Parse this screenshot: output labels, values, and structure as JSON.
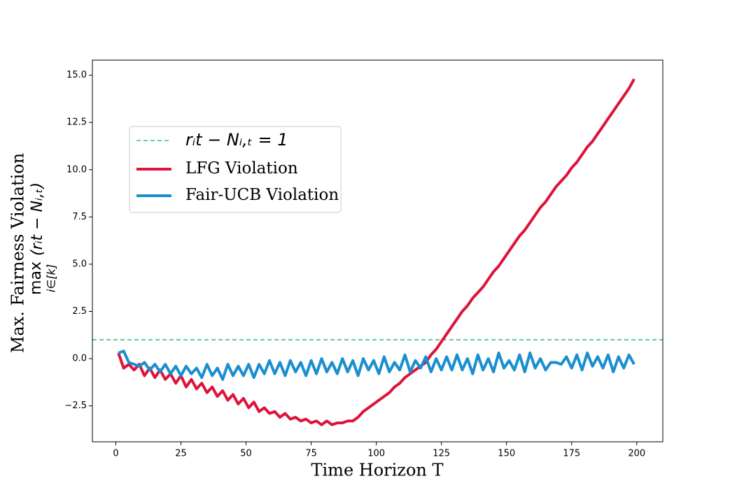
{
  "chart_data": {
    "type": "line",
    "x_label": "Time Horizon T",
    "y_label": "Max. Fairness Violation",
    "y_label_math": {
      "op": "max",
      "sub": "i∈[k]",
      "expr": "(rᵢt − Nᵢ,ₜ)"
    },
    "xlim": [
      -9,
      210
    ],
    "ylim": [
      -4.4,
      15.8
    ],
    "xticks": [
      0,
      25,
      50,
      75,
      100,
      125,
      150,
      175,
      200
    ],
    "yticks": [
      {
        "value": -2.5,
        "label": "−2.5"
      },
      {
        "value": 0,
        "label": "0.0"
      },
      {
        "value": 2.5,
        "label": "2.5"
      },
      {
        "value": 5,
        "label": "5.0"
      },
      {
        "value": 7.5,
        "label": "7.5"
      },
      {
        "value": 10,
        "label": "10.0"
      },
      {
        "value": 12.5,
        "label": "12.5"
      },
      {
        "value": 15,
        "label": "15.0"
      }
    ],
    "grid": false,
    "legend": "upper left",
    "reference_line": {
      "name": "rᵢt − Nᵢ,ₜ = 1",
      "value": 1,
      "color": "#3cc08a",
      "linestyle": "dashed"
    },
    "x": [
      1,
      3,
      5,
      7,
      9,
      11,
      13,
      15,
      17,
      19,
      21,
      23,
      25,
      27,
      29,
      31,
      33,
      35,
      37,
      39,
      41,
      43,
      45,
      47,
      49,
      51,
      53,
      55,
      57,
      59,
      61,
      63,
      65,
      67,
      69,
      71,
      73,
      75,
      77,
      79,
      81,
      83,
      85,
      87,
      89,
      91,
      93,
      95,
      97,
      99,
      101,
      103,
      105,
      107,
      109,
      111,
      113,
      115,
      117,
      119,
      121,
      123,
      125,
      127,
      129,
      131,
      133,
      135,
      137,
      139,
      141,
      143,
      145,
      147,
      149,
      151,
      153,
      155,
      157,
      159,
      161,
      163,
      165,
      167,
      169,
      171,
      173,
      175,
      177,
      179,
      181,
      183,
      185,
      187,
      189,
      191,
      193,
      195,
      197,
      199
    ],
    "series": [
      {
        "name": "LFG Violation",
        "color": "#dc143c",
        "values": [
          0.3,
          -0.5,
          -0.3,
          -0.6,
          -0.3,
          -0.9,
          -0.5,
          -1.0,
          -0.6,
          -1.1,
          -0.8,
          -1.3,
          -0.9,
          -1.5,
          -1.1,
          -1.6,
          -1.3,
          -1.8,
          -1.5,
          -2.0,
          -1.7,
          -2.2,
          -1.9,
          -2.4,
          -2.1,
          -2.6,
          -2.3,
          -2.8,
          -2.6,
          -2.9,
          -2.8,
          -3.1,
          -2.9,
          -3.2,
          -3.1,
          -3.3,
          -3.2,
          -3.4,
          -3.3,
          -3.5,
          -3.3,
          -3.5,
          -3.4,
          -3.4,
          -3.3,
          -3.3,
          -3.1,
          -2.8,
          -2.6,
          -2.4,
          -2.2,
          -2.0,
          -1.8,
          -1.5,
          -1.3,
          -1.0,
          -0.8,
          -0.6,
          -0.4,
          -0.2,
          0.2,
          0.5,
          0.9,
          1.3,
          1.7,
          2.1,
          2.5,
          2.8,
          3.2,
          3.5,
          3.8,
          4.2,
          4.6,
          4.9,
          5.3,
          5.7,
          6.1,
          6.5,
          6.8,
          7.2,
          7.6,
          8.0,
          8.3,
          8.7,
          9.1,
          9.4,
          9.7,
          10.1,
          10.4,
          10.8,
          11.2,
          11.5,
          11.9,
          12.3,
          12.7,
          13.1,
          13.5,
          13.9,
          14.3,
          14.8
        ]
      },
      {
        "name": "Fair-UCB Violation",
        "color": "#1a8fd0",
        "values": [
          0.3,
          0.4,
          -0.2,
          -0.3,
          -0.4,
          -0.2,
          -0.6,
          -0.3,
          -0.7,
          -0.3,
          -0.8,
          -0.4,
          -0.9,
          -0.4,
          -0.8,
          -0.5,
          -1.0,
          -0.3,
          -0.9,
          -0.5,
          -1.1,
          -0.3,
          -0.9,
          -0.4,
          -0.9,
          -0.3,
          -1.0,
          -0.3,
          -0.8,
          -0.1,
          -0.8,
          -0.2,
          -0.9,
          -0.1,
          -0.7,
          -0.2,
          -0.9,
          -0.1,
          -0.8,
          0.0,
          -0.7,
          -0.2,
          -0.8,
          0.0,
          -0.7,
          -0.1,
          -0.9,
          0.0,
          -0.6,
          -0.1,
          -0.8,
          0.1,
          -0.7,
          -0.2,
          -0.6,
          0.2,
          -0.7,
          -0.1,
          -0.5,
          0.1,
          -0.7,
          0.0,
          -0.6,
          0.1,
          -0.6,
          0.2,
          -0.6,
          0.0,
          -0.8,
          0.2,
          -0.6,
          0.0,
          -0.7,
          0.3,
          -0.5,
          -0.1,
          -0.6,
          0.2,
          -0.7,
          0.3,
          -0.5,
          0.0,
          -0.6,
          -0.2,
          -0.2,
          -0.3,
          0.1,
          -0.5,
          0.2,
          -0.6,
          0.3,
          -0.4,
          0.1,
          -0.5,
          0.2,
          -0.7,
          0.1,
          -0.5,
          0.2,
          -0.3
        ]
      }
    ]
  }
}
